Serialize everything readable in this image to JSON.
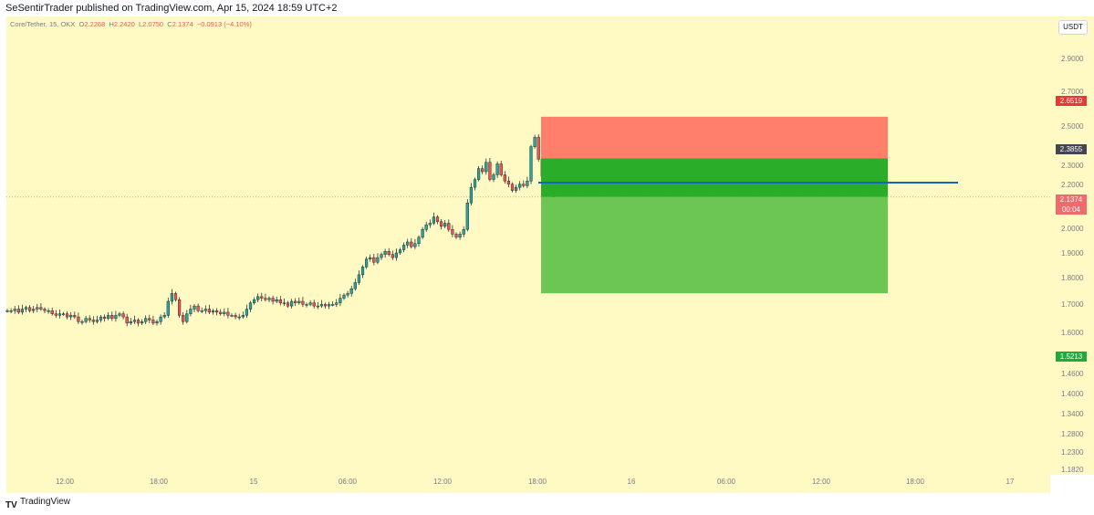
{
  "header": {
    "published": "SeSentirTrader published on TradingView.com, Apr 15, 2024 18:59 UTC+2"
  },
  "legend": {
    "symbol": "Core/Tether, 15, OKX",
    "open_label": "O",
    "open": "2.2268",
    "high_label": "H",
    "high": "2.2420",
    "low_label": "L",
    "low": "2.0750",
    "close_label": "C",
    "close": "2.1374",
    "change": "−0.0913 (−4.10%)"
  },
  "currency_badge": "USDT",
  "price_labels": {
    "stop": "2.6519",
    "entry": "2.3855",
    "current": "2.1374",
    "countdown": "00:04",
    "target": "1.5213"
  },
  "footer": {
    "logo": "TV",
    "brand": "TradingView"
  },
  "colors": {
    "background": "#fff9c4",
    "candle_up": "#26a69a",
    "candle_down": "#ef5350",
    "stop_zone": "#ff7f6a",
    "profit_zone_dark": "#2aae29",
    "profit_zone_light": "#6cc654",
    "horizontal_line": "#1565c0",
    "stop_label": "#e53935",
    "entry_label": "#434651",
    "current_label": "#ef6a6a",
    "target_label": "#1faa3b"
  },
  "chart_data": {
    "type": "candlestick",
    "y_ticks": [
      "2.9000",
      "2.7000",
      "2.5000",
      "2.3000",
      "2.2000",
      "2.0000",
      "1.9000",
      "1.8000",
      "1.7000",
      "1.6000",
      "1.4600",
      "1.4000",
      "1.3400",
      "1.2800",
      "1.2300",
      "1.1820"
    ],
    "x_ticks": [
      "12:00",
      "18:00",
      "15",
      "06:00",
      "12:00",
      "18:00",
      "16",
      "06:00",
      "12:00",
      "18:00",
      "17"
    ],
    "ylim": [
      1.18,
      3.0
    ],
    "position": {
      "side": "short",
      "entry": 2.3855,
      "stop": 2.6519,
      "target": 1.5213,
      "current": 2.1374
    },
    "horizontal_line": 2.23,
    "candles_close": [
      1.41,
      1.41,
      1.42,
      1.4,
      1.42,
      1.43,
      1.41,
      1.42,
      1.43,
      1.42,
      1.41,
      1.41,
      1.39,
      1.38,
      1.39,
      1.39,
      1.37,
      1.38,
      1.37,
      1.34,
      1.34,
      1.36,
      1.35,
      1.34,
      1.35,
      1.37,
      1.36,
      1.38,
      1.36,
      1.38,
      1.39,
      1.37,
      1.33,
      1.34,
      1.35,
      1.33,
      1.34,
      1.36,
      1.35,
      1.33,
      1.34,
      1.37,
      1.38,
      1.47,
      1.52,
      1.48,
      1.38,
      1.34,
      1.39,
      1.42,
      1.44,
      1.41,
      1.41,
      1.42,
      1.4,
      1.41,
      1.4,
      1.39,
      1.4,
      1.38,
      1.38,
      1.37,
      1.37,
      1.38,
      1.42,
      1.46,
      1.48,
      1.5,
      1.49,
      1.48,
      1.49,
      1.47,
      1.48,
      1.46,
      1.46,
      1.44,
      1.47,
      1.46,
      1.47,
      1.45,
      1.45,
      1.46,
      1.44,
      1.44,
      1.45,
      1.44,
      1.45,
      1.45,
      1.46,
      1.49,
      1.51,
      1.52,
      1.55,
      1.59,
      1.64,
      1.69,
      1.74,
      1.75,
      1.72,
      1.75,
      1.77,
      1.79,
      1.77,
      1.75,
      1.78,
      1.8,
      1.83,
      1.85,
      1.82,
      1.84,
      1.88,
      1.93,
      1.96,
      1.97,
      2.01,
      1.98,
      1.95,
      1.97,
      1.93,
      1.9,
      1.88,
      1.9,
      1.93,
      2.1,
      2.2,
      2.25,
      2.32,
      2.3,
      2.36,
      2.25,
      2.28,
      2.35,
      2.28,
      2.24,
      2.22,
      2.18,
      2.2,
      2.22,
      2.21,
      2.24,
      2.46,
      2.52,
      2.38,
      2.27,
      2.2,
      2.16,
      2.14
    ]
  }
}
